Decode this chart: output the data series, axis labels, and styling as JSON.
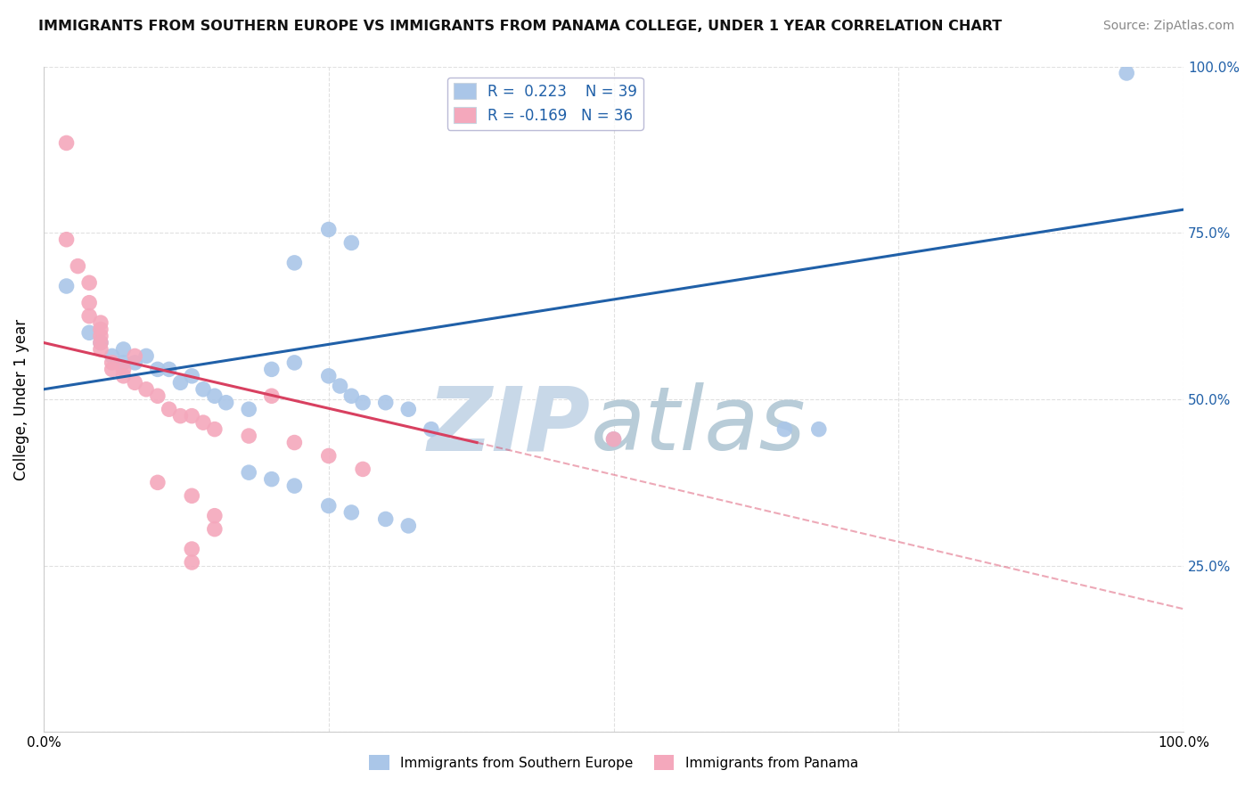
{
  "title": "IMMIGRANTS FROM SOUTHERN EUROPE VS IMMIGRANTS FROM PANAMA COLLEGE, UNDER 1 YEAR CORRELATION CHART",
  "source": "Source: ZipAtlas.com",
  "ylabel": "College, Under 1 year",
  "xlim": [
    0.0,
    1.0
  ],
  "ylim": [
    0.0,
    1.0
  ],
  "legend_label1": "Immigrants from Southern Europe",
  "legend_label2": "Immigrants from Panama",
  "R1": 0.223,
  "N1": 39,
  "R2": -0.169,
  "N2": 36,
  "blue_color": "#aac6e8",
  "pink_color": "#f4a8bc",
  "blue_line_color": "#2060a8",
  "pink_line_color": "#d84060",
  "blue_line": [
    [
      0.0,
      0.515
    ],
    [
      1.0,
      0.785
    ]
  ],
  "pink_line_solid": [
    [
      0.0,
      0.585
    ],
    [
      0.38,
      0.435
    ]
  ],
  "pink_line_dash": [
    [
      0.38,
      0.435
    ],
    [
      1.0,
      0.185
    ]
  ],
  "blue_scatter": [
    [
      0.02,
      0.67
    ],
    [
      0.25,
      0.755
    ],
    [
      0.04,
      0.6
    ],
    [
      0.05,
      0.585
    ],
    [
      0.06,
      0.565
    ],
    [
      0.07,
      0.575
    ],
    [
      0.07,
      0.555
    ],
    [
      0.08,
      0.555
    ],
    [
      0.09,
      0.565
    ],
    [
      0.1,
      0.545
    ],
    [
      0.11,
      0.545
    ],
    [
      0.12,
      0.525
    ],
    [
      0.13,
      0.535
    ],
    [
      0.14,
      0.515
    ],
    [
      0.15,
      0.505
    ],
    [
      0.16,
      0.495
    ],
    [
      0.18,
      0.485
    ],
    [
      0.2,
      0.545
    ],
    [
      0.22,
      0.555
    ],
    [
      0.25,
      0.535
    ],
    [
      0.26,
      0.52
    ],
    [
      0.27,
      0.505
    ],
    [
      0.28,
      0.495
    ],
    [
      0.3,
      0.495
    ],
    [
      0.32,
      0.485
    ],
    [
      0.34,
      0.455
    ],
    [
      0.18,
      0.39
    ],
    [
      0.2,
      0.38
    ],
    [
      0.22,
      0.37
    ],
    [
      0.25,
      0.34
    ],
    [
      0.27,
      0.33
    ],
    [
      0.3,
      0.32
    ],
    [
      0.32,
      0.31
    ],
    [
      0.5,
      0.44
    ],
    [
      0.65,
      0.455
    ],
    [
      0.68,
      0.455
    ],
    [
      0.95,
      0.99
    ],
    [
      0.22,
      0.705
    ],
    [
      0.27,
      0.735
    ]
  ],
  "pink_scatter": [
    [
      0.02,
      0.885
    ],
    [
      0.02,
      0.74
    ],
    [
      0.03,
      0.7
    ],
    [
      0.04,
      0.675
    ],
    [
      0.04,
      0.645
    ],
    [
      0.04,
      0.625
    ],
    [
      0.05,
      0.615
    ],
    [
      0.05,
      0.605
    ],
    [
      0.05,
      0.595
    ],
    [
      0.05,
      0.585
    ],
    [
      0.05,
      0.575
    ],
    [
      0.06,
      0.555
    ],
    [
      0.06,
      0.545
    ],
    [
      0.07,
      0.545
    ],
    [
      0.07,
      0.535
    ],
    [
      0.08,
      0.525
    ],
    [
      0.09,
      0.515
    ],
    [
      0.1,
      0.505
    ],
    [
      0.11,
      0.485
    ],
    [
      0.12,
      0.475
    ],
    [
      0.13,
      0.475
    ],
    [
      0.14,
      0.465
    ],
    [
      0.15,
      0.455
    ],
    [
      0.18,
      0.445
    ],
    [
      0.2,
      0.505
    ],
    [
      0.22,
      0.435
    ],
    [
      0.25,
      0.415
    ],
    [
      0.28,
      0.395
    ],
    [
      0.1,
      0.375
    ],
    [
      0.13,
      0.355
    ],
    [
      0.15,
      0.325
    ],
    [
      0.15,
      0.305
    ],
    [
      0.13,
      0.275
    ],
    [
      0.13,
      0.255
    ],
    [
      0.5,
      0.44
    ],
    [
      0.08,
      0.565
    ]
  ],
  "watermark_zip_color": "#c8d8e8",
  "watermark_atlas_color": "#b8ccd8",
  "background_color": "#ffffff",
  "grid_color": "#e0e0e0"
}
